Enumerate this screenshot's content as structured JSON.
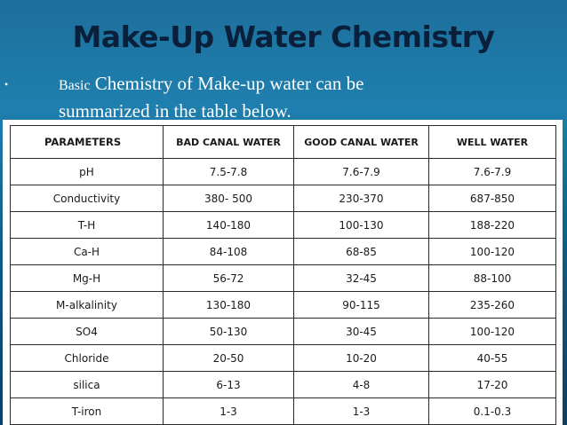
{
  "title": "Make-Up Water Chemistry",
  "bullet_symbol": "•",
  "bullet_text_first_word": "Basic",
  "bullet_text_rest_line1": " Chemistry of Make-up water can be",
  "bullet_text_line2": "summarized  in the table  below.",
  "table": {
    "headers": [
      "PARAMETERS",
      "BAD CANAL WATER",
      "GOOD CANAL WATER",
      "WELL WATER"
    ],
    "rows": [
      [
        "pH",
        "7.5-7.8",
        "7.6-7.9",
        "7.6-7.9"
      ],
      [
        "Conductivity",
        "380- 500",
        "230-370",
        "687-850"
      ],
      [
        "T-H",
        "140-180",
        "100-130",
        "188-220"
      ],
      [
        "Ca-H",
        "84-108",
        "68-85",
        "100-120"
      ],
      [
        "Mg-H",
        "56-72",
        "32-45",
        "88-100"
      ],
      [
        "M-alkalinity",
        "130-180",
        "90-115",
        "235-260"
      ],
      [
        "SO4",
        "50-130",
        "30-45",
        "100-120"
      ],
      [
        "Chloride",
        "20-50",
        "10-20",
        "40-55"
      ],
      [
        "silica",
        "6-13",
        "4-8",
        "17-20"
      ],
      [
        "T-iron",
        "1-3",
        "1-3",
        "0.1-0.3"
      ]
    ]
  }
}
